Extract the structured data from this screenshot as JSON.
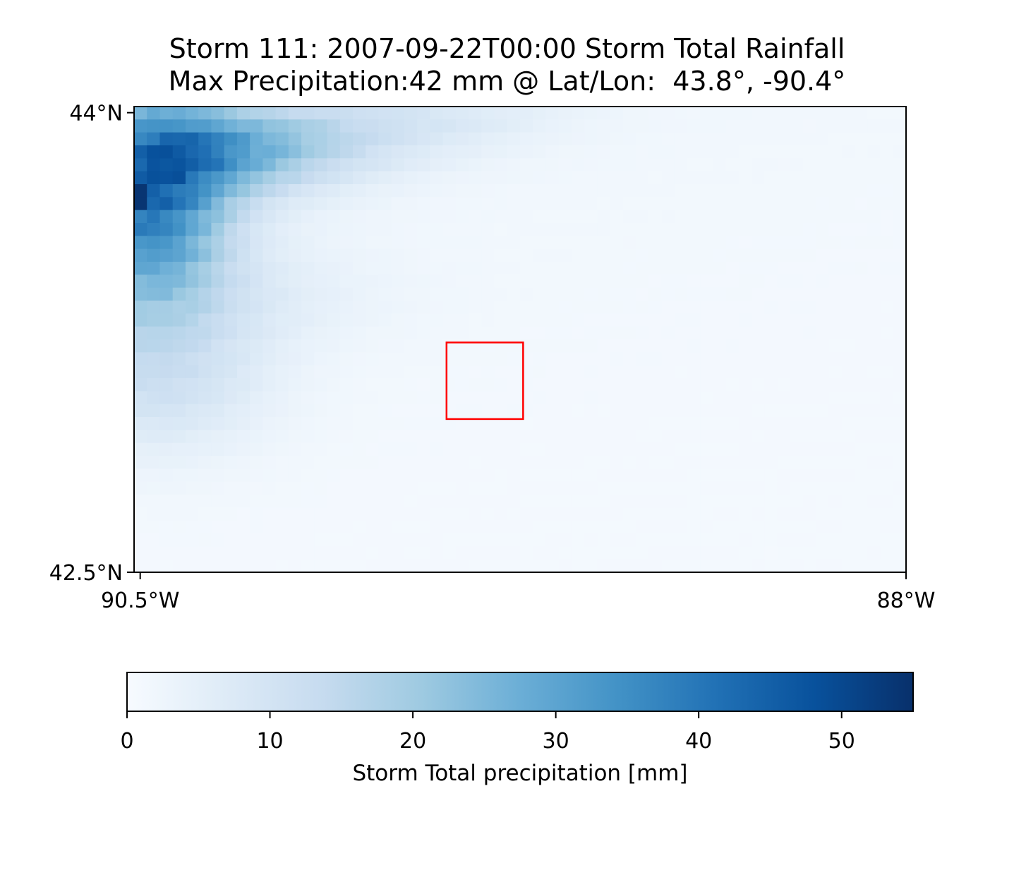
{
  "chart_data": {
    "type": "heatmap",
    "title": "Storm 111: 2007-09-22T00:00 Storm Total Rainfall",
    "subtitle": "Max Precipitation:42 mm @ Lat/Lon:  43.8°, -90.4°",
    "colormap": "Blues",
    "lon_range": [
      -90.52,
      -88.0
    ],
    "lat_range": [
      42.5,
      44.02
    ],
    "x_ticks": [
      {
        "value": -90.5,
        "label": "90.5°W"
      },
      {
        "value": -88.0,
        "label": "88°W"
      }
    ],
    "y_ticks": [
      {
        "value": 44.0,
        "label": "44°N"
      },
      {
        "value": 42.5,
        "label": "42.5°N"
      }
    ],
    "max_precip": {
      "value": 42,
      "units": "mm",
      "lat": 43.8,
      "lon": -90.4
    },
    "highlight_box": {
      "lon": [
        -89.5,
        -89.25
      ],
      "lat": [
        43.0,
        43.25
      ],
      "color": "#ff0000"
    },
    "colorbar": {
      "label": "Storm Total precipitation [mm]",
      "range": [
        0,
        55
      ],
      "ticks": [
        0,
        10,
        20,
        30,
        40,
        50
      ]
    },
    "grid_on": false
  }
}
